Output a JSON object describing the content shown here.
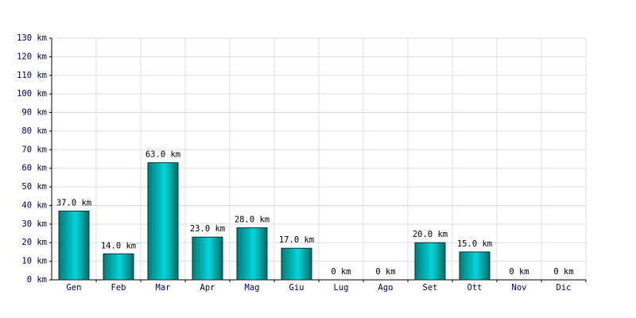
{
  "chart_data": {
    "type": "bar",
    "categories": [
      "Gen",
      "Feb",
      "Mar",
      "Apr",
      "Mag",
      "Giu",
      "Lug",
      "Ago",
      "Set",
      "Ott",
      "Nov",
      "Dic"
    ],
    "values": [
      37,
      14,
      63,
      23,
      28,
      17,
      0,
      0,
      20,
      15,
      0,
      0
    ],
    "value_labels": [
      "37.0 km",
      "14.0 km",
      "63.0 km",
      "23.0 km",
      "28.0 km",
      "17.0 km",
      "0 km",
      "0 km",
      "20.0 km",
      "15.0 km",
      "0 km",
      "0 km"
    ],
    "color": "#00d8d8",
    "ylim": [
      0,
      130
    ],
    "yticks": [
      {
        "value": 0,
        "label": "0 km"
      },
      {
        "value": 10,
        "label": "10 km"
      },
      {
        "value": 20,
        "label": "20 km"
      },
      {
        "value": 30,
        "label": "30 km"
      },
      {
        "value": 40,
        "label": "40 km"
      },
      {
        "value": 50,
        "label": "50 km"
      },
      {
        "value": 60,
        "label": "60 km"
      },
      {
        "value": 70,
        "label": "70 km"
      },
      {
        "value": 80,
        "label": "80 km"
      },
      {
        "value": 90,
        "label": "90 km"
      },
      {
        "value": 100,
        "label": "100 km"
      },
      {
        "value": 110,
        "label": "110 km"
      },
      {
        "value": 120,
        "label": "120 km"
      },
      {
        "value": 130,
        "label": "130 km"
      }
    ],
    "grid": true
  }
}
